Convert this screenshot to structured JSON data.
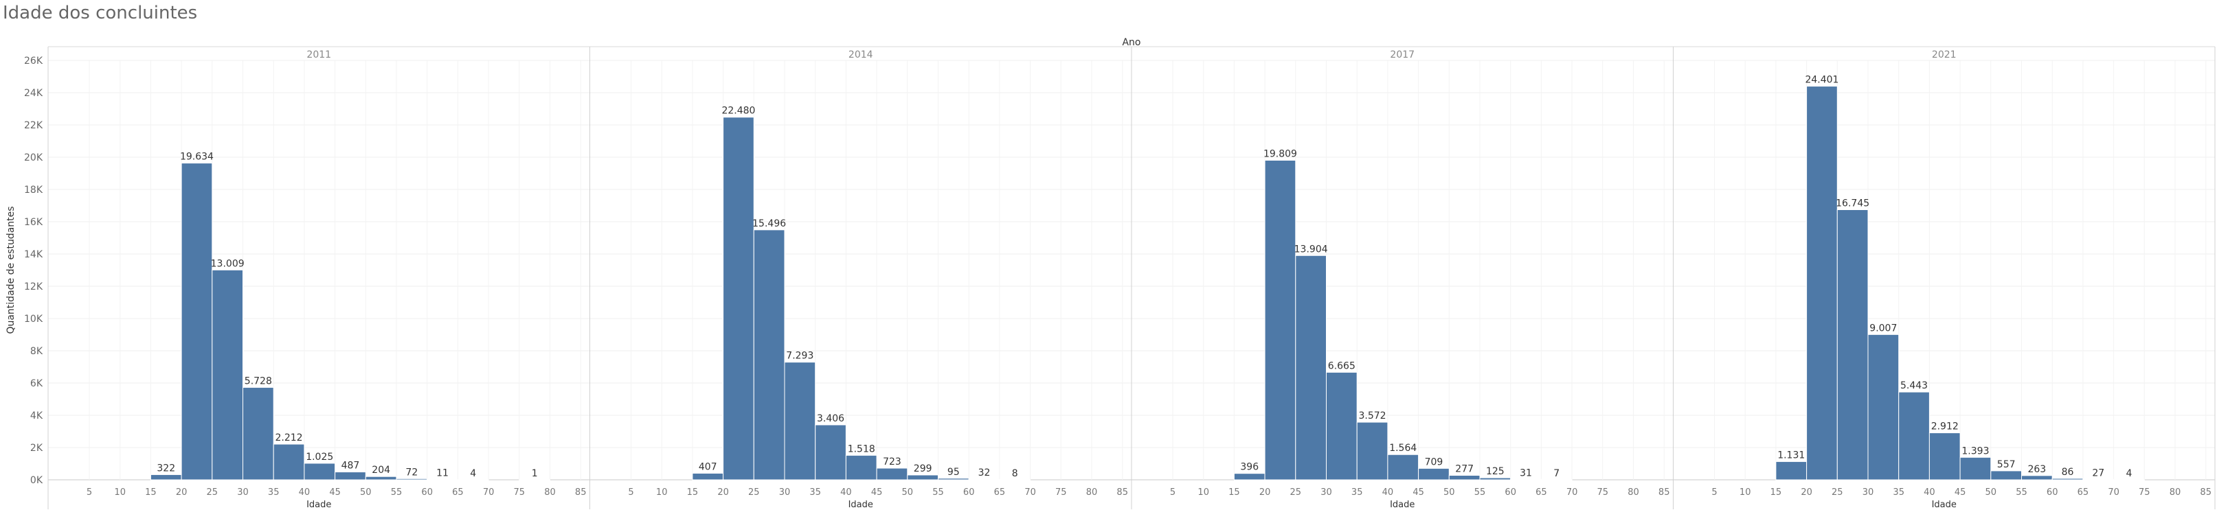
{
  "title": "Idade dos concluintes",
  "chart_data": {
    "type": "bar",
    "column_header": "Ano",
    "ylabel": "Quantidade de estudantes",
    "xlabel": "Idade",
    "ylim": [
      0,
      26000
    ],
    "y_ticks": [
      "0K",
      "2K",
      "4K",
      "6K",
      "8K",
      "10K",
      "12K",
      "14K",
      "16K",
      "18K",
      "20K",
      "22K",
      "24K",
      "26K"
    ],
    "x_ticks": [
      "5",
      "10",
      "15",
      "20",
      "25",
      "30",
      "35",
      "40",
      "45",
      "50",
      "55",
      "60",
      "65",
      "70",
      "75",
      "80",
      "85"
    ],
    "bin_width": 5,
    "bar_color": "#4e79a7",
    "panels": [
      {
        "year": "2011",
        "bins": [
          15,
          20,
          25,
          30,
          35,
          40,
          45,
          50,
          55,
          60,
          65,
          75
        ],
        "values": [
          322,
          19634,
          13009,
          5728,
          2212,
          1025,
          487,
          204,
          72,
          11,
          4,
          1
        ],
        "labels": [
          "322",
          "19.634",
          "13.009",
          "5.728",
          "2.212",
          "1.025",
          "487",
          "204",
          "72",
          "11",
          "4",
          "1"
        ]
      },
      {
        "year": "2014",
        "bins": [
          15,
          20,
          25,
          30,
          35,
          40,
          45,
          50,
          55,
          60,
          65
        ],
        "values": [
          407,
          22480,
          15496,
          7293,
          3406,
          1518,
          723,
          299,
          95,
          32,
          8
        ],
        "labels": [
          "407",
          "22.480",
          "15.496",
          "7.293",
          "3.406",
          "1.518",
          "723",
          "299",
          "95",
          "32",
          "8"
        ]
      },
      {
        "year": "2017",
        "bins": [
          15,
          20,
          25,
          30,
          35,
          40,
          45,
          50,
          55,
          60,
          65
        ],
        "values": [
          396,
          19809,
          13904,
          6665,
          3572,
          1564,
          709,
          277,
          125,
          31,
          7
        ],
        "labels": [
          "396",
          "19.809",
          "13.904",
          "6.665",
          "3.572",
          "1.564",
          "709",
          "277",
          "125",
          "31",
          "7"
        ]
      },
      {
        "year": "2021",
        "bins": [
          15,
          20,
          25,
          30,
          35,
          40,
          45,
          50,
          55,
          60,
          65,
          70
        ],
        "values": [
          1131,
          24401,
          16745,
          9007,
          5443,
          2912,
          1393,
          557,
          263,
          86,
          27,
          4
        ],
        "labels": [
          "1.131",
          "24.401",
          "16.745",
          "9.007",
          "5.443",
          "2.912",
          "1.393",
          "557",
          "263",
          "86",
          "27",
          "4"
        ]
      }
    ]
  }
}
